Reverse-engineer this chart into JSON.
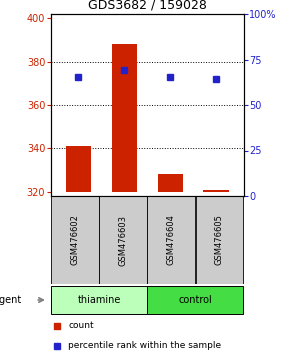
{
  "title": "GDS3682 / 159028",
  "samples": [
    "GSM476602",
    "GSM476603",
    "GSM476604",
    "GSM476605"
  ],
  "counts": [
    341,
    388,
    328,
    321
  ],
  "count_base": 320,
  "percentiles": [
    373,
    376,
    373,
    372
  ],
  "left_ylim": [
    318,
    402
  ],
  "left_yticks": [
    320,
    340,
    360,
    380,
    400
  ],
  "right_ylim": [
    0,
    100
  ],
  "right_yticks": [
    0,
    25,
    50,
    75,
    100
  ],
  "right_yticklabels": [
    "0",
    "25",
    "50",
    "75",
    "100%"
  ],
  "bar_color": "#cc2200",
  "dot_color": "#2222cc",
  "grid_yticks": [
    340,
    360,
    380
  ],
  "agent_groups": [
    {
      "label": "thiamine",
      "cols": [
        0,
        1
      ],
      "color": "#bbffbb"
    },
    {
      "label": "control",
      "cols": [
        2,
        3
      ],
      "color": "#44dd44"
    }
  ],
  "agent_label": "agent",
  "legend_count_label": "count",
  "legend_pct_label": "percentile rank within the sample",
  "sample_box_color": "#cccccc",
  "bar_width": 0.55
}
